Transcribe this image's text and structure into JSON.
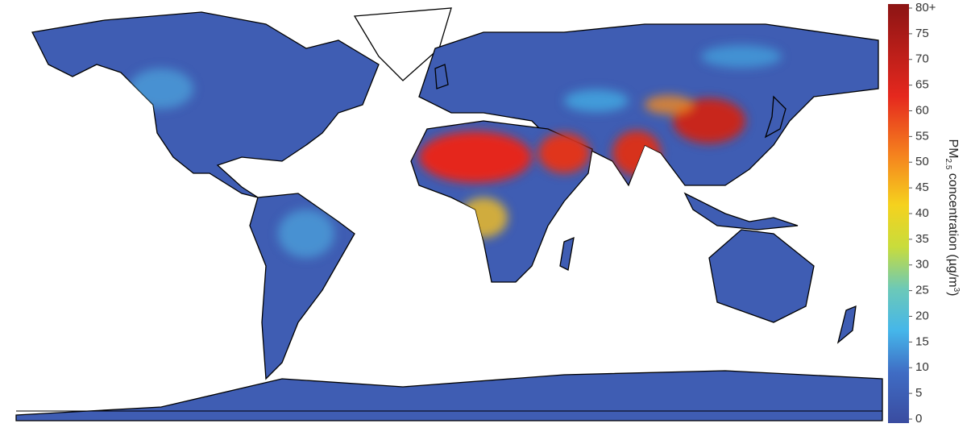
{
  "map": {
    "colorbar": {
      "title_parts": [
        "PM",
        "2.5",
        " concentration (µg/m",
        "3",
        ")"
      ],
      "lim": [
        0,
        80
      ],
      "ticks": [
        0,
        5,
        10,
        15,
        20,
        25,
        30,
        35,
        40,
        45,
        50,
        55,
        60,
        65,
        70,
        75,
        {
          "value": 80,
          "label": "80+"
        }
      ]
    }
  }
}
